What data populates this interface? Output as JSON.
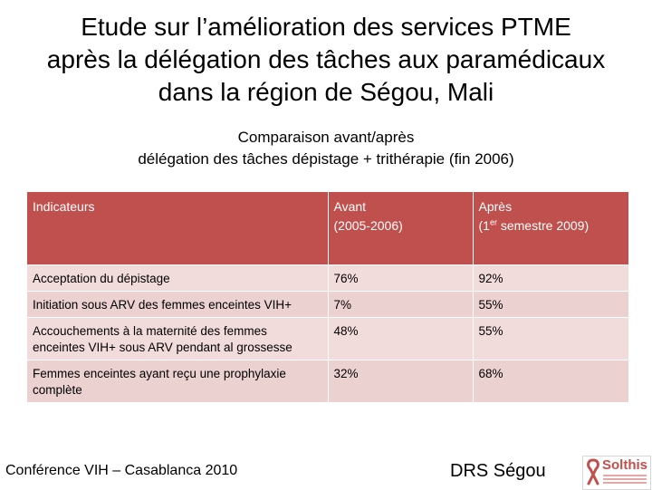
{
  "title": {
    "line1": "Etude sur l’amélioration des services PTME",
    "line2": "après la délégation des tâches aux paramédicaux",
    "line3": "dans la région de Ségou, Mali"
  },
  "subtitle": {
    "line1": "Comparaison avant/après",
    "line2": "délégation des tâches dépistage + trithérapie (fin 2006)"
  },
  "table": {
    "headers": {
      "indicateurs": "Indicateurs",
      "avant_label": "Avant",
      "avant_period": "(2005-2006)",
      "apres_label": "Après",
      "apres_period_pre": "(1",
      "apres_period_sup": "er",
      "apres_period_post": " semestre 2009)"
    },
    "rows": [
      {
        "indicator": "Acceptation du dépistage",
        "avant": "76%",
        "apres": "92%"
      },
      {
        "indicator": "Initiation sous ARV des femmes enceintes VIH+",
        "avant": "7%",
        "apres": "55%"
      },
      {
        "indicator": "Accouchements à la maternité des femmes enceintes VIH+ sous ARV pendant al grossesse",
        "avant": "48%",
        "apres": "55%"
      },
      {
        "indicator": "Femmes enceintes ayant reçu une prophylaxie complète",
        "avant": "32%",
        "apres": "68%"
      }
    ]
  },
  "footer": {
    "conference": "Conférence VIH – Casablanca 2010",
    "organization": "DRS Ségou",
    "logo_text": "Solthis"
  },
  "colors": {
    "header_bg": "#c0504d",
    "row_bg": "#f2dcdb",
    "row_alt_bg": "#ebd1d0",
    "logo_red": "#c0504d"
  }
}
